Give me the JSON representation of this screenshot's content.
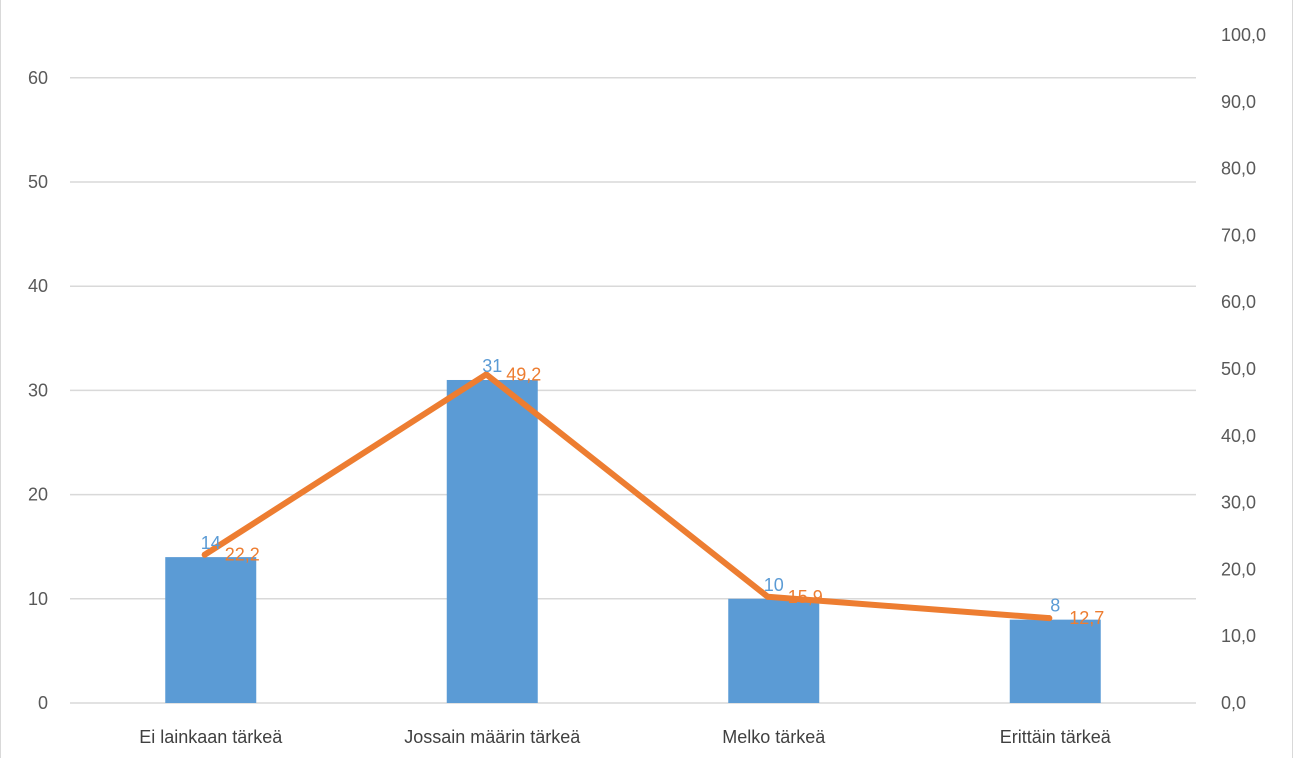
{
  "chart_data": {
    "type": "bar",
    "categories": [
      "Ei lainkaan tärkeä",
      "Jossain määrin tärkeä",
      "Melko tärkeä",
      "Erittäin tärkeä"
    ],
    "series": [
      {
        "type": "bar",
        "axis": "left",
        "color": "#5b9bd5",
        "values": [
          14,
          31,
          10,
          8
        ],
        "labels": [
          "14",
          "31",
          "10",
          "8"
        ]
      },
      {
        "type": "line",
        "axis": "right",
        "color": "#ed7d31",
        "values": [
          22.2,
          49.2,
          15.9,
          12.7
        ],
        "labels": [
          "22,2",
          "49,2",
          "15,9",
          "12,7"
        ]
      }
    ],
    "y_left": {
      "range": [
        0,
        65
      ],
      "ticks": [
        0,
        10,
        20,
        30,
        40,
        50,
        60
      ],
      "tick_labels": [
        "0",
        "10",
        "20",
        "30",
        "40",
        "50",
        "60"
      ]
    },
    "y_right": {
      "range": [
        0,
        100
      ],
      "ticks": [
        0,
        10,
        20,
        30,
        40,
        50,
        60,
        70,
        80,
        90,
        100
      ],
      "tick_labels": [
        "0,0",
        "10,0",
        "20,0",
        "30,0",
        "40,0",
        "50,0",
        "60,0",
        "70,0",
        "80,0",
        "90,0",
        "100,0"
      ]
    },
    "gridlines": true,
    "legend": "none"
  }
}
